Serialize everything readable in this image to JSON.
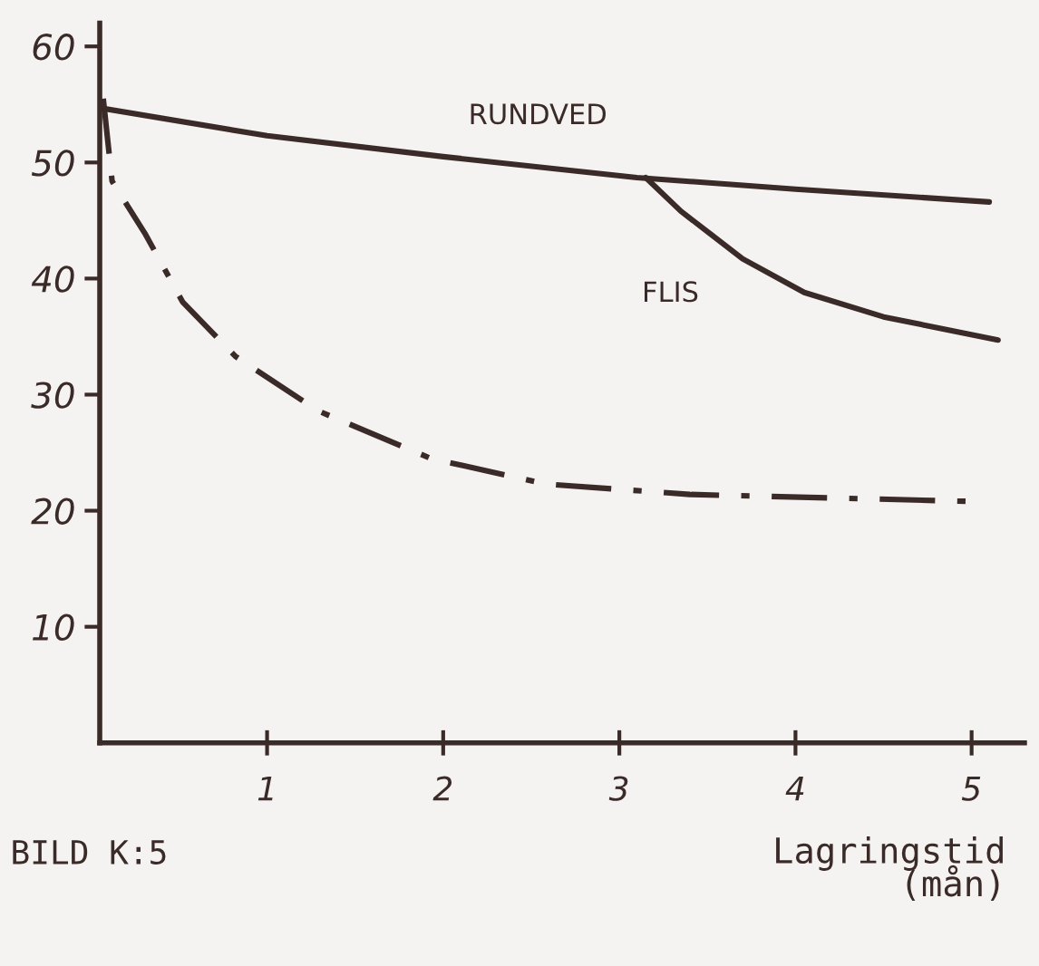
{
  "chart_data": {
    "type": "line",
    "xlabel": "Lagringstid\n(mån)",
    "xlim": [
      0.05,
      5.3
    ],
    "ylim": [
      0,
      62
    ],
    "xticks": [
      1,
      2,
      3,
      4,
      5
    ],
    "yticks": [
      10,
      20,
      30,
      40,
      50,
      60
    ],
    "grid": false,
    "legend": false,
    "marker": "none",
    "series": [
      {
        "name": "RUNDVED",
        "color": "#3a2a28",
        "line_style": "solid",
        "x": [
          0.05,
          1,
          2,
          3.1,
          4,
          5.1
        ],
        "values": [
          54.7,
          52.3,
          50.5,
          48.7,
          47.7,
          46.6
        ]
      },
      {
        "name": "FLIS",
        "color": "#3a2a28",
        "line_style": "solid",
        "x": [
          3.15,
          3.35,
          3.7,
          4.05,
          4.5,
          5.15
        ],
        "values": [
          48.7,
          45.8,
          41.7,
          38.8,
          36.7,
          34.7
        ]
      },
      {
        "color": "#3a2a28",
        "line_style": "dashdot",
        "x": [
          0.07,
          0.12,
          0.31,
          0.52,
          0.82,
          1.29,
          1.93,
          2.58,
          3.4,
          5.0
        ],
        "values": [
          55.5,
          48.4,
          43.8,
          38,
          33.3,
          28.6,
          24.5,
          22.3,
          21.4,
          20.8
        ]
      }
    ],
    "annotations": [
      "BILD K:5"
    ]
  }
}
